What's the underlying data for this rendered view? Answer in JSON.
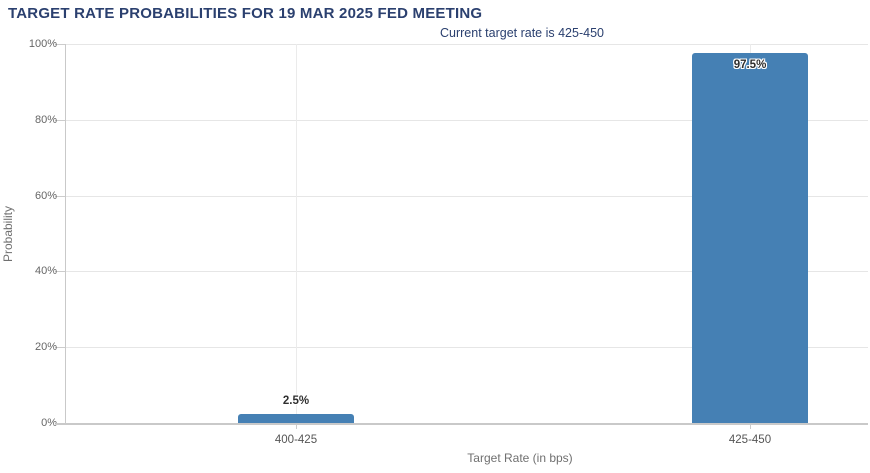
{
  "chart_data": {
    "type": "bar",
    "title": "TARGET RATE PROBABILITIES FOR 19 MAR 2025 FED MEETING",
    "subtitle": "Current target rate is 425-450",
    "categories": [
      "400-425",
      "425-450"
    ],
    "values": [
      2.5,
      97.5
    ],
    "value_labels": [
      "2.5%",
      "97.5%"
    ],
    "xlabel": "Target Rate (in bps)",
    "ylabel": "Probability",
    "ylim": [
      0,
      100
    ],
    "yticks": [
      0,
      20,
      40,
      60,
      80,
      100
    ],
    "ytick_labels": [
      "0%",
      "20%",
      "40%",
      "60%",
      "80%",
      "100%"
    ],
    "grid": true,
    "legend": "none",
    "colors": {
      "bar": "#4580b4",
      "title": "#2b406f",
      "gridline": "#e6e6e6",
      "axis_line": "#c9c9c9",
      "tick_label": "#666666",
      "axis_title": "#707070"
    }
  }
}
